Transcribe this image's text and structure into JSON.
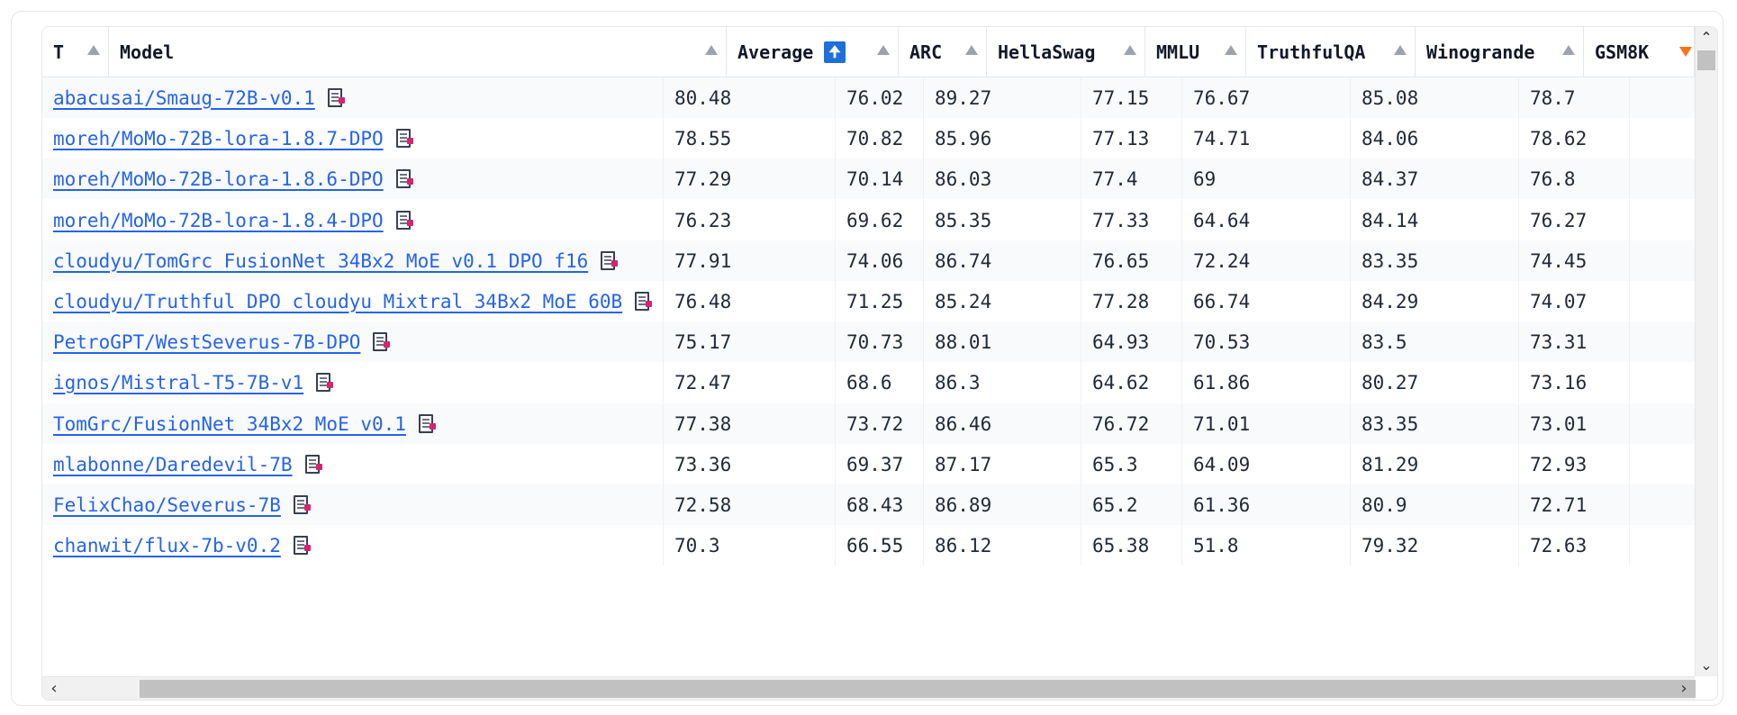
{
  "table": {
    "columns": [
      {
        "key": "T",
        "label": "T"
      },
      {
        "key": "model",
        "label": "Model"
      },
      {
        "key": "average",
        "label": "Average"
      },
      {
        "key": "arc",
        "label": "ARC"
      },
      {
        "key": "hellaswag",
        "label": "HellaSwag"
      },
      {
        "key": "mmlu",
        "label": "MMLU"
      },
      {
        "key": "truthfulqa",
        "label": "TruthfulQA"
      },
      {
        "key": "winogrande",
        "label": "Winogrande"
      },
      {
        "key": "gsm8k",
        "label": "GSM8K"
      }
    ],
    "average_sort_badge": "🠉",
    "rows": [
      {
        "model": "abacusai/Smaug-72B-v0.1",
        "average": "80.48",
        "arc": "76.02",
        "hellaswag": "89.27",
        "mmlu": "77.15",
        "truthfulqa": "76.67",
        "winogrande": "85.08",
        "gsm8k": "78.7"
      },
      {
        "model": "moreh/MoMo-72B-lora-1.8.7-DPO",
        "average": "78.55",
        "arc": "70.82",
        "hellaswag": "85.96",
        "mmlu": "77.13",
        "truthfulqa": "74.71",
        "winogrande": "84.06",
        "gsm8k": "78.62"
      },
      {
        "model": "moreh/MoMo-72B-lora-1.8.6-DPO",
        "average": "77.29",
        "arc": "70.14",
        "hellaswag": "86.03",
        "mmlu": "77.4",
        "truthfulqa": "69",
        "winogrande": "84.37",
        "gsm8k": "76.8"
      },
      {
        "model": "moreh/MoMo-72B-lora-1.8.4-DPO",
        "average": "76.23",
        "arc": "69.62",
        "hellaswag": "85.35",
        "mmlu": "77.33",
        "truthfulqa": "64.64",
        "winogrande": "84.14",
        "gsm8k": "76.27"
      },
      {
        "model": "cloudyu/TomGrc_FusionNet_34Bx2_MoE_v0.1_DPO_f16",
        "average": "77.91",
        "arc": "74.06",
        "hellaswag": "86.74",
        "mmlu": "76.65",
        "truthfulqa": "72.24",
        "winogrande": "83.35",
        "gsm8k": "74.45"
      },
      {
        "model": "cloudyu/Truthful_DPO_cloudyu_Mixtral_34Bx2_MoE_60B",
        "average": "76.48",
        "arc": "71.25",
        "hellaswag": "85.24",
        "mmlu": "77.28",
        "truthfulqa": "66.74",
        "winogrande": "84.29",
        "gsm8k": "74.07"
      },
      {
        "model": "PetroGPT/WestSeverus-7B-DPO",
        "average": "75.17",
        "arc": "70.73",
        "hellaswag": "88.01",
        "mmlu": "64.93",
        "truthfulqa": "70.53",
        "winogrande": "83.5",
        "gsm8k": "73.31"
      },
      {
        "model": "ignos/Mistral-T5-7B-v1",
        "average": "72.47",
        "arc": "68.6",
        "hellaswag": "86.3",
        "mmlu": "64.62",
        "truthfulqa": "61.86",
        "winogrande": "80.27",
        "gsm8k": "73.16"
      },
      {
        "model": "TomGrc/FusionNet_34Bx2_MoE_v0.1",
        "average": "77.38",
        "arc": "73.72",
        "hellaswag": "86.46",
        "mmlu": "76.72",
        "truthfulqa": "71.01",
        "winogrande": "83.35",
        "gsm8k": "73.01"
      },
      {
        "model": "mlabonne/Daredevil-7B",
        "average": "73.36",
        "arc": "69.37",
        "hellaswag": "87.17",
        "mmlu": "65.3",
        "truthfulqa": "64.09",
        "winogrande": "81.29",
        "gsm8k": "72.93"
      },
      {
        "model": "FelixChao/Severus-7B",
        "average": "72.58",
        "arc": "68.43",
        "hellaswag": "86.89",
        "mmlu": "65.2",
        "truthfulqa": "61.36",
        "winogrande": "80.9",
        "gsm8k": "72.71"
      },
      {
        "model": "chanwit/flux-7b-v0.2",
        "average": "70.3",
        "arc": "66.55",
        "hellaswag": "86.12",
        "mmlu": "65.38",
        "truthfulqa": "51.8",
        "winogrande": "79.32",
        "gsm8k": "72.63"
      }
    ]
  },
  "colors": {
    "link": "#2563eb",
    "sort_active": "#f97316",
    "badge": "#1e6fd9",
    "row_alt": "#f9fafb"
  },
  "icons": {
    "sort": "sort-arrow-icon",
    "model_card": "model-card-icon",
    "scroll_up": "chevron-up-icon",
    "scroll_down": "chevron-down-icon",
    "scroll_left": "chevron-left-icon",
    "scroll_right": "chevron-right-icon"
  }
}
